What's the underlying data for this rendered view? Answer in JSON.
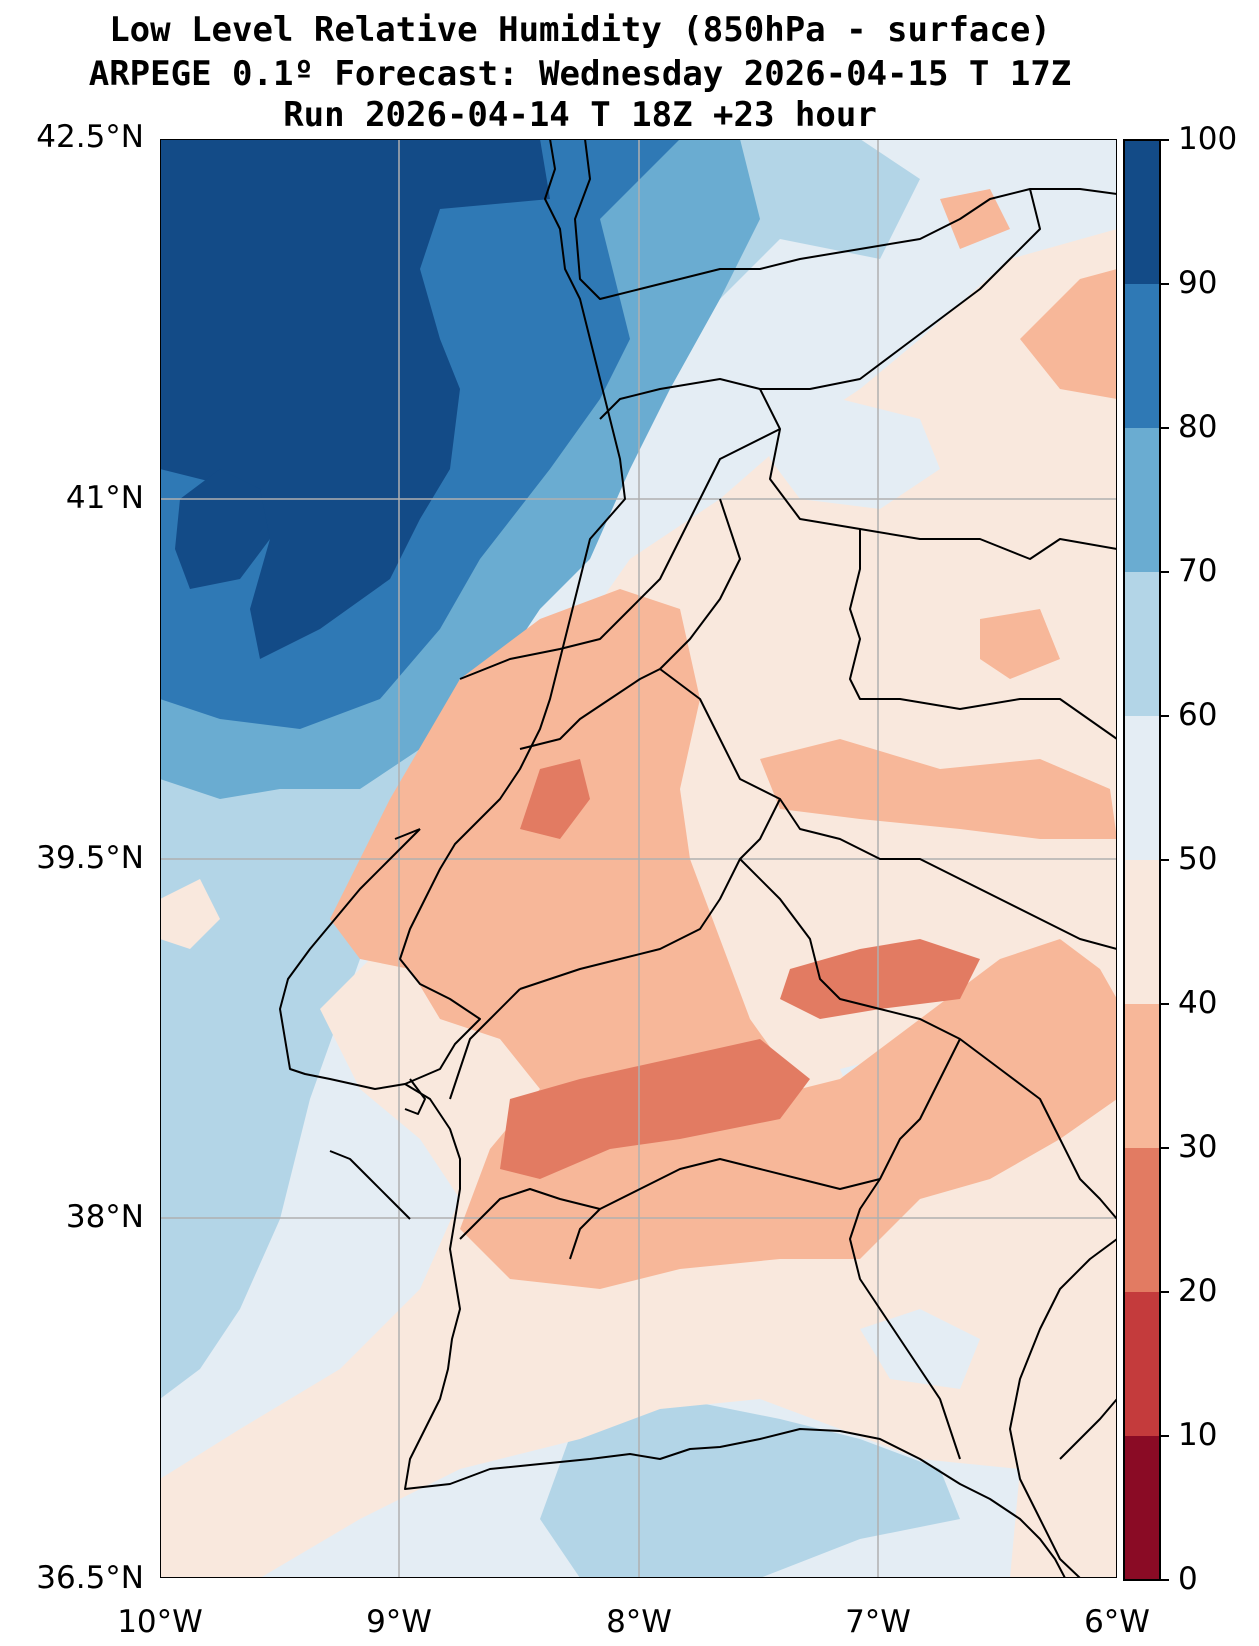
{
  "title": {
    "line1": "Low Level Relative Humidity (850hPa - surface)",
    "line2": "ARPEGE 0.1º Forecast: Wednesday 2026-04-15 T 17Z",
    "line3": "Run 2026-04-14 T 18Z +23 hour"
  },
  "axes": {
    "lat_ticks": [
      "42.5°N",
      "41°N",
      "39.5°N",
      "38°N",
      "36.5°N"
    ],
    "lon_ticks": [
      "10°W",
      "9°W",
      "8°W",
      "7°W",
      "6°W"
    ]
  },
  "colorbar": {
    "ticks": [
      "100",
      "90",
      "80",
      "70",
      "60",
      "50",
      "40",
      "30",
      "20",
      "10",
      "0"
    ],
    "colors": [
      "#134b87",
      "#2f79b5",
      "#6aacd1",
      "#b3d5e7",
      "#e4edf4",
      "#f9e8dd",
      "#f7b799",
      "#e27b62",
      "#c43b3c",
      "#8a0b25"
    ]
  },
  "map": {
    "extent": [
      -10,
      -6,
      36.5,
      42.5
    ]
  }
}
